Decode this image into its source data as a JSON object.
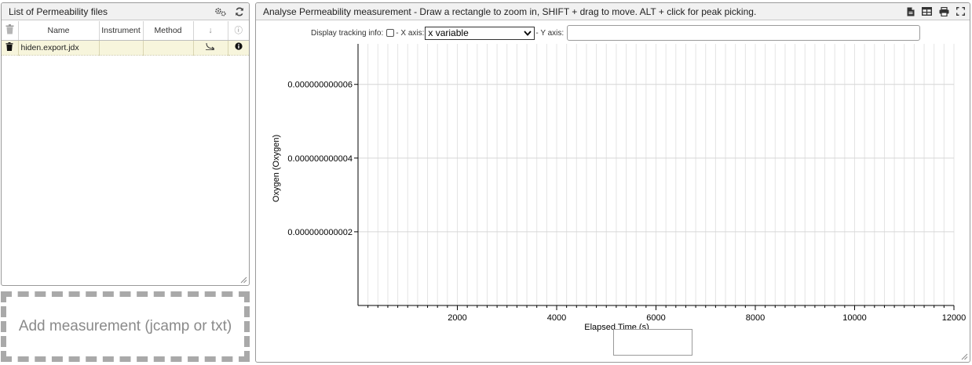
{
  "left_panel": {
    "title": "List of Permeability files",
    "header_icons": [
      "settings-gears-icon",
      "refresh-icon"
    ],
    "columns": [
      "",
      "Name",
      "Instrument",
      "Method",
      "↓",
      "ⓘ"
    ],
    "rows": [
      {
        "name": "hiden.export.jdx",
        "instrument": "",
        "method": ""
      }
    ]
  },
  "drop_zone": {
    "label": "Add measurement (jcamp or txt)"
  },
  "right_panel": {
    "title": "Analyse Permeability measurement - Draw a rectangle to zoom in, SHIFT + drag to move. ALT + click for peak picking.",
    "header_icons": [
      "export-file-icon",
      "table-icon",
      "print-icon",
      "fullscreen-icon"
    ],
    "tracking_label": "Display tracking info:",
    "x_axis_label": "- X axis:",
    "x_select_value": "x variable",
    "y_axis_label": "- Y axis:",
    "y_input_value": ""
  },
  "chart_data": {
    "type": "line",
    "xlabel": "Elapsed Time  (s)",
    "ylabel": "Oxygen  (Oxygen)",
    "x_ticks": [
      "2000",
      "4000",
      "6000",
      "8000",
      "10000",
      "12000"
    ],
    "x_tick_values": [
      2000,
      4000,
      6000,
      8000,
      10000,
      12000
    ],
    "y_ticks": [
      "0.000000000002",
      "0.000000000004",
      "0.000000000006"
    ],
    "y_tick_values": [
      2e-12,
      4e-12,
      6e-12
    ],
    "xlim": [
      0,
      12000
    ],
    "ylim": [
      0,
      7.1e-12
    ],
    "x_minor_step": 200,
    "grid": true,
    "series": []
  }
}
